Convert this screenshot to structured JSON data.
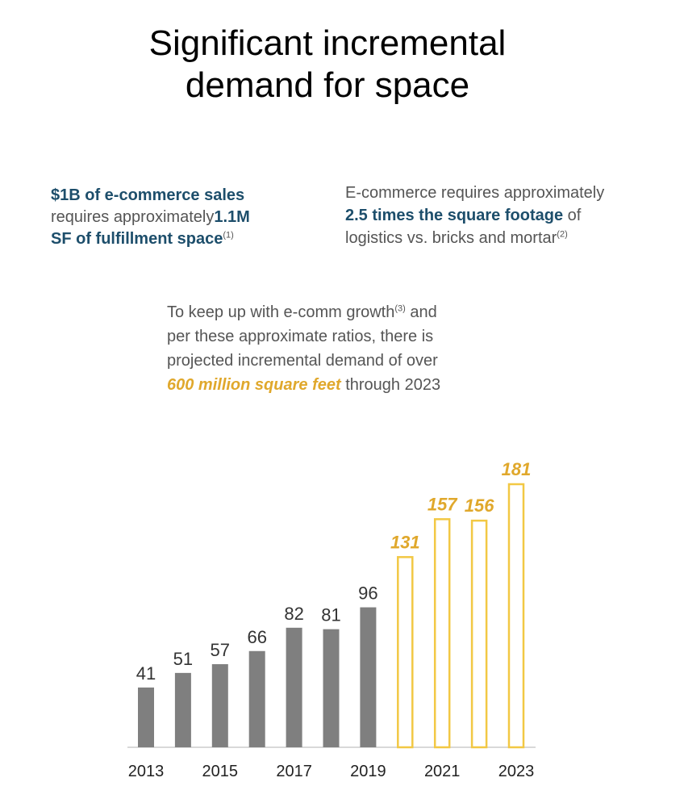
{
  "header": {
    "title_line1": "Significant incremental",
    "title_line2": "demand for space"
  },
  "note_left": {
    "hl1": "$1B of e-commerce sales",
    "text1": "requires approximately",
    "hl2": "1.1M",
    "hl3": "SF of fulfillment space",
    "fn": "(1)"
  },
  "note_right": {
    "text1": "E-commerce requires approximately",
    "hl1": "2.5 times the square footage",
    "text2": " of",
    "text3": "logistics vs. bricks and mortar",
    "fn": "(2)"
  },
  "note_center": {
    "text1": "To keep up with e-comm growth",
    "fn": "(3)",
    "text2": " and",
    "text3": "per these approximate ratios, there is",
    "text4": "projected incremental demand of over",
    "gold": "600 million square feet",
    "text5": " through 2023"
  },
  "colors": {
    "actual": "#7f7f7f",
    "projected": "#f2c844",
    "projected_label": "#e0a82c",
    "baseline": "#d9d9d9"
  },
  "chart_data": {
    "type": "bar",
    "categories": [
      "2013",
      "2014",
      "2015",
      "2016",
      "2017",
      "2018",
      "2019",
      "2020",
      "2021",
      "2022",
      "2023"
    ],
    "values": [
      41,
      51,
      57,
      66,
      82,
      81,
      96,
      131,
      157,
      156,
      181
    ],
    "projected": [
      false,
      false,
      false,
      false,
      false,
      false,
      false,
      true,
      true,
      true,
      true
    ],
    "tick_labels": [
      "2013",
      "",
      "2015",
      "",
      "2017",
      "",
      "2019",
      "",
      "2021",
      "",
      "2023"
    ],
    "data_labels": [
      "41",
      "51",
      "57",
      "66",
      "82",
      "81",
      "96",
      "131",
      "157",
      "156",
      "181"
    ],
    "ylim": [
      0,
      181
    ],
    "grid": false,
    "legend": "none"
  }
}
